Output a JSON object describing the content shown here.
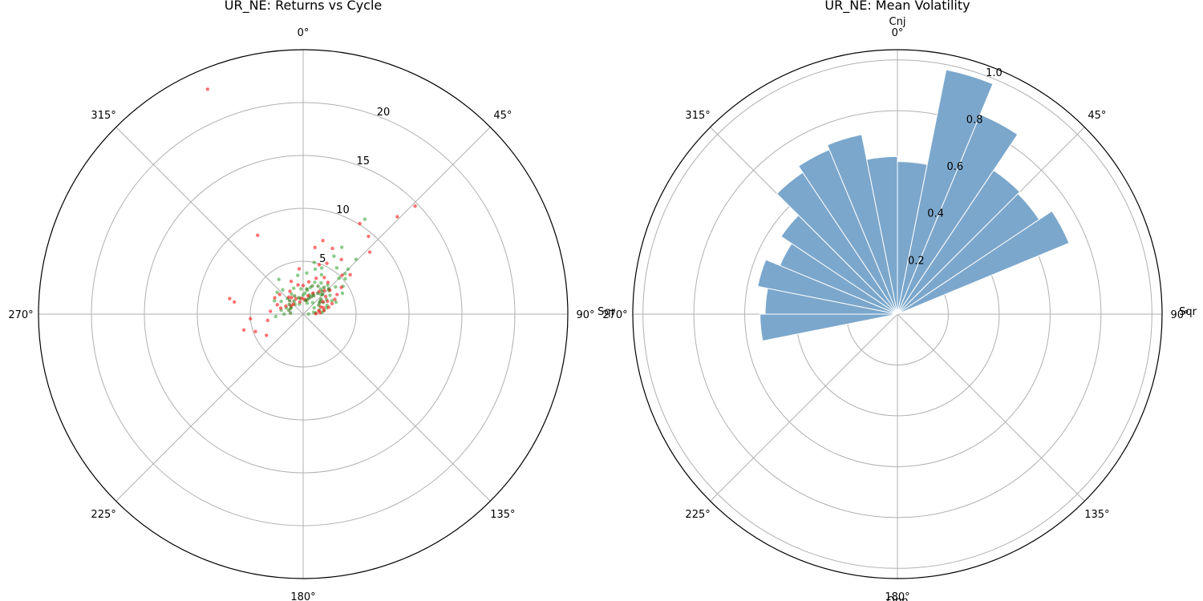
{
  "chart_data": [
    {
      "type": "scatter",
      "projection": "polar",
      "title": "UR_NE: Returns vs Cycle",
      "theta_direction": "clockwise",
      "theta_zero": "top",
      "theta_tick_labels": [
        "0°",
        "45°",
        "90°",
        "135°",
        "180°",
        "225°",
        "270°",
        "315°"
      ],
      "theta_ticks_deg": [
        0,
        45,
        90,
        135,
        180,
        225,
        270,
        315
      ],
      "r_max": 25,
      "r_ticks": [
        5,
        10,
        15,
        20
      ],
      "r_tick_labels": [
        "5",
        "10",
        "15",
        "20"
      ],
      "r_label_angle_deg": 22.5,
      "extra_label": "Sqr",
      "series": [
        {
          "name": "up",
          "color": "#2ca02c",
          "points_theta_r": [
            [
              88,
              0.5
            ],
            [
              85,
              1.2
            ],
            [
              80,
              2.0
            ],
            [
              75,
              1.6
            ],
            [
              70,
              2.4
            ],
            [
              65,
              3.0
            ],
            [
              60,
              2.2
            ],
            [
              55,
              3.1
            ],
            [
              50,
              4.0
            ],
            [
              45,
              4.8
            ],
            [
              45,
              6.0
            ],
            [
              44,
              7.2
            ],
            [
              46,
              5.5
            ],
            [
              40,
              3.6
            ],
            [
              35,
              2.9
            ],
            [
              30,
              3.4
            ],
            [
              25,
              4.1
            ],
            [
              20,
              3.2
            ],
            [
              15,
              2.6
            ],
            [
              10,
              2.3
            ],
            [
              5,
              2.0
            ],
            [
              0,
              1.8
            ],
            [
              355,
              2.4
            ],
            [
              350,
              1.5
            ],
            [
              340,
              2.6
            ],
            [
              330,
              2.2
            ],
            [
              320,
              3.0
            ],
            [
              315,
              2.1
            ],
            [
              300,
              2.4
            ],
            [
              290,
              1.7
            ],
            [
              280,
              2.1
            ],
            [
              270,
              1.8
            ],
            [
              265,
              2.6
            ],
            [
              300,
              1.3
            ],
            [
              320,
              1.2
            ],
            [
              340,
              1.0
            ],
            [
              20,
              1.1
            ],
            [
              40,
              1.4
            ],
            [
              60,
              1.2
            ],
            [
              80,
              1.0
            ],
            [
              33,
              10.7
            ],
            [
              28,
              6.2
            ],
            [
              50,
              5.2
            ],
            [
              55,
              4.6
            ],
            [
              62,
              4.2
            ],
            [
              70,
              3.3
            ],
            [
              30,
              7.3
            ],
            [
              12,
              5.0
            ],
            [
              22,
              4.7
            ],
            [
              36,
              5.4
            ],
            [
              48,
              3.3
            ],
            [
              325,
              4.0
            ],
            [
              310,
              3.2
            ],
            [
              295,
              3.0
            ],
            [
              15,
              4.4
            ],
            [
              5,
              3.9
            ],
            [
              352,
              3.7
            ],
            [
              58,
              2.6
            ],
            [
              75,
              2.3
            ],
            [
              85,
              1.8
            ],
            [
              18,
              1.9
            ],
            [
              26,
              2.1
            ],
            [
              42,
              2.5
            ],
            [
              53,
              2.0
            ]
          ]
        },
        {
          "name": "down",
          "color": "#ff0000",
          "points_theta_r": [
            [
              337,
              23.1
            ],
            [
              46,
              14.7
            ],
            [
              44,
              12.8
            ],
            [
              32,
              10.1
            ],
            [
              40,
              9.6
            ],
            [
              47,
              8.6
            ],
            [
              330,
              8.6
            ],
            [
              10,
              6.4
            ],
            [
              15,
              7.2
            ],
            [
              24,
              6.8
            ],
            [
              35,
              6.3
            ],
            [
              50,
              5.8
            ],
            [
              45,
              5.2
            ],
            [
              55,
              4.4
            ],
            [
              60,
              3.7
            ],
            [
              65,
              3.3
            ],
            [
              70,
              2.9
            ],
            [
              75,
              2.5
            ],
            [
              80,
              2.0
            ],
            [
              85,
              1.6
            ],
            [
              88,
              1.2
            ],
            [
              30,
              4.0
            ],
            [
              20,
              3.6
            ],
            [
              10,
              3.1
            ],
            [
              0,
              2.7
            ],
            [
              350,
              2.8
            ],
            [
              340,
              3.3
            ],
            [
              330,
              2.5
            ],
            [
              320,
              2.1
            ],
            [
              310,
              2.9
            ],
            [
              300,
              3.1
            ],
            [
              290,
              2.6
            ],
            [
              282,
              7.1
            ],
            [
              280,
              6.6
            ],
            [
              265,
              5.0
            ],
            [
              255,
              5.8
            ],
            [
              250,
              4.8
            ],
            [
              240,
              4.0
            ],
            [
              260,
              3.4
            ],
            [
              275,
              3.1
            ],
            [
              285,
              2.2
            ],
            [
              295,
              1.8
            ],
            [
              305,
              1.4
            ],
            [
              315,
              1.3
            ],
            [
              325,
              1.9
            ],
            [
              335,
              1.6
            ],
            [
              345,
              1.2
            ],
            [
              355,
              1.5
            ],
            [
              5,
              1.4
            ],
            [
              15,
              1.8
            ],
            [
              25,
              2.2
            ],
            [
              35,
              2.6
            ],
            [
              42,
              3.0
            ],
            [
              52,
              2.7
            ],
            [
              58,
              2.2
            ],
            [
              68,
              1.8
            ],
            [
              78,
              1.5
            ],
            [
              25,
              5.3
            ],
            [
              18,
              4.9
            ],
            [
              38,
              3.8
            ],
            [
              48,
              3.4
            ],
            [
              62,
              2.6
            ],
            [
              72,
              2.0
            ],
            [
              355,
              4.3
            ]
          ]
        },
        {
          "name": "overlap",
          "color": "#226600",
          "points_theta_r": [
            [
              30,
              2.0
            ],
            [
              35,
              2.4
            ],
            [
              40,
              2.8
            ],
            [
              45,
              2.6
            ],
            [
              50,
              2.2
            ],
            [
              55,
              1.9
            ],
            [
              60,
              1.7
            ],
            [
              25,
              1.8
            ],
            [
              20,
              1.6
            ],
            [
              15,
              1.4
            ],
            [
              10,
              1.3
            ],
            [
              345,
              1.6
            ],
            [
              335,
              1.9
            ],
            [
              325,
              1.5
            ],
            [
              315,
              1.8
            ],
            [
              305,
              1.6
            ],
            [
              295,
              1.3
            ],
            [
              285,
              1.4
            ],
            [
              275,
              1.2
            ],
            [
              45,
              3.4
            ],
            [
              38,
              3.2
            ],
            [
              28,
              3.0
            ],
            [
              18,
              2.8
            ],
            [
              8,
              2.4
            ]
          ]
        }
      ]
    },
    {
      "type": "bar",
      "projection": "polar",
      "title": "UR_NE: Mean Volatility",
      "theta_direction": "clockwise",
      "theta_zero": "top",
      "theta_tick_labels": [
        "0°",
        "45°",
        "90°",
        "135°",
        "180°",
        "225°",
        "270°",
        "315°"
      ],
      "theta_ticks_deg": [
        0,
        45,
        90,
        135,
        180,
        225,
        270,
        315
      ],
      "r_max": 1.04,
      "r_ticks": [
        0.2,
        0.4,
        0.6,
        0.8,
        1.0
      ],
      "r_tick_labels": [
        "0.2",
        "0.4",
        "0.6",
        "0.8",
        "1.0"
      ],
      "r_label_angle_deg": 22.5,
      "aspect_labels": {
        "top": "Cnj",
        "right": "Sqr",
        "bottom": "Opp"
      },
      "bar_color": "#7ba7cc",
      "bar_width_deg": 11.25,
      "bars": [
        {
          "theta_deg": 5.625,
          "value": 0.6
        },
        {
          "theta_deg": 16.875,
          "value": 0.98
        },
        {
          "theta_deg": 28.125,
          "value": 0.85
        },
        {
          "theta_deg": 39.375,
          "value": 0.68
        },
        {
          "theta_deg": 50.625,
          "value": 0.67
        },
        {
          "theta_deg": 61.875,
          "value": 0.73
        },
        {
          "theta_deg": 264.375,
          "value": 0.54
        },
        {
          "theta_deg": 275.625,
          "value": 0.52
        },
        {
          "theta_deg": 286.875,
          "value": 0.56
        },
        {
          "theta_deg": 298.125,
          "value": 0.5
        },
        {
          "theta_deg": 309.375,
          "value": 0.55
        },
        {
          "theta_deg": 320.625,
          "value": 0.67
        },
        {
          "theta_deg": 331.875,
          "value": 0.7
        },
        {
          "theta_deg": 343.125,
          "value": 0.72
        },
        {
          "theta_deg": 354.375,
          "value": 0.62
        }
      ]
    }
  ]
}
